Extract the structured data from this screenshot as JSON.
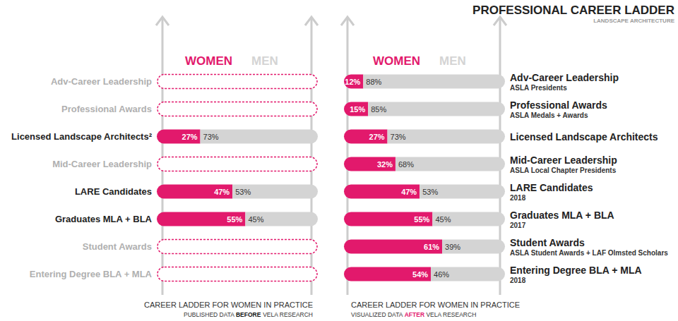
{
  "title": "PROFESSIONAL CAREER LADDER",
  "subtitle": "LANDSCAPE ARCHITECTURE",
  "chart_data": [
    {
      "type": "bar",
      "orientation": "horizontal",
      "stacked": true,
      "data_labels": true,
      "tick_labels": "y",
      "grid": false,
      "caption": "CAREER LADDER FOR WOMEN IN PRACTICE",
      "subcaption": [
        "PUBLISHED DATA ",
        "BEFORE",
        " VELA RESEARCH"
      ],
      "categories": [
        "Adv-Career Leadership",
        "Professional Awards",
        "Licensed Landscape Architects²",
        "Mid-Career Leadership",
        "LARE Candidates",
        "Graduates MLA + BLA",
        "Student Awards",
        "Entering Degree BLA + MLA"
      ],
      "xlim": [
        0,
        100
      ],
      "series": [
        {
          "name": "WOMEN",
          "color": "#e2196c",
          "values": [
            null,
            null,
            27,
            null,
            47,
            55,
            null,
            null
          ],
          "value_labels": [
            null,
            null,
            "27%",
            null,
            "47%",
            "55%",
            null,
            null
          ]
        },
        {
          "name": "MEN",
          "color": "#d4d4d4",
          "values": [
            null,
            null,
            73,
            null,
            53,
            45,
            null,
            null
          ],
          "value_labels": [
            null,
            null,
            "73%",
            null,
            "53%",
            "45%",
            null,
            null
          ]
        }
      ]
    },
    {
      "type": "bar",
      "orientation": "horizontal",
      "stacked": true,
      "data_labels": true,
      "tick_labels": "y",
      "grid": false,
      "caption": "CAREER LADDER FOR WOMEN IN PRACTICE",
      "subcaption": [
        "VISUALIZED DATA ",
        "AFTER",
        " VELA RESEARCH"
      ],
      "categories": [
        "Adv-Career Leadership",
        "Professional Awards",
        "Licensed Landscape Architects",
        "Mid-Career Leadership",
        "LARE Candidates",
        "Graduates MLA + BLA",
        "Student Awards",
        "Entering Degree BLA + MLA"
      ],
      "category_subtitles": [
        "ASLA Presidents",
        "ASLA Medals + Awards",
        null,
        "ASLA Local Chapter Presidents",
        "2018",
        "2017",
        "ASLA Student Awards + LAF Olmsted Scholars",
        "2018"
      ],
      "xlim": [
        0,
        100
      ],
      "series": [
        {
          "name": "WOMEN",
          "color": "#e2196c",
          "values": [
            12,
            15,
            27,
            32,
            47,
            55,
            61,
            54
          ],
          "value_labels": [
            "12%",
            "15%",
            "27%",
            "32%",
            "47%",
            "55%",
            "61%",
            "54%"
          ]
        },
        {
          "name": "MEN",
          "color": "#d4d4d4",
          "values": [
            88,
            85,
            73,
            68,
            53,
            45,
            39,
            46
          ],
          "value_labels": [
            "88%",
            "85%",
            "73%",
            "68%",
            "53%",
            "45%",
            "39%",
            "46%"
          ]
        }
      ]
    }
  ]
}
